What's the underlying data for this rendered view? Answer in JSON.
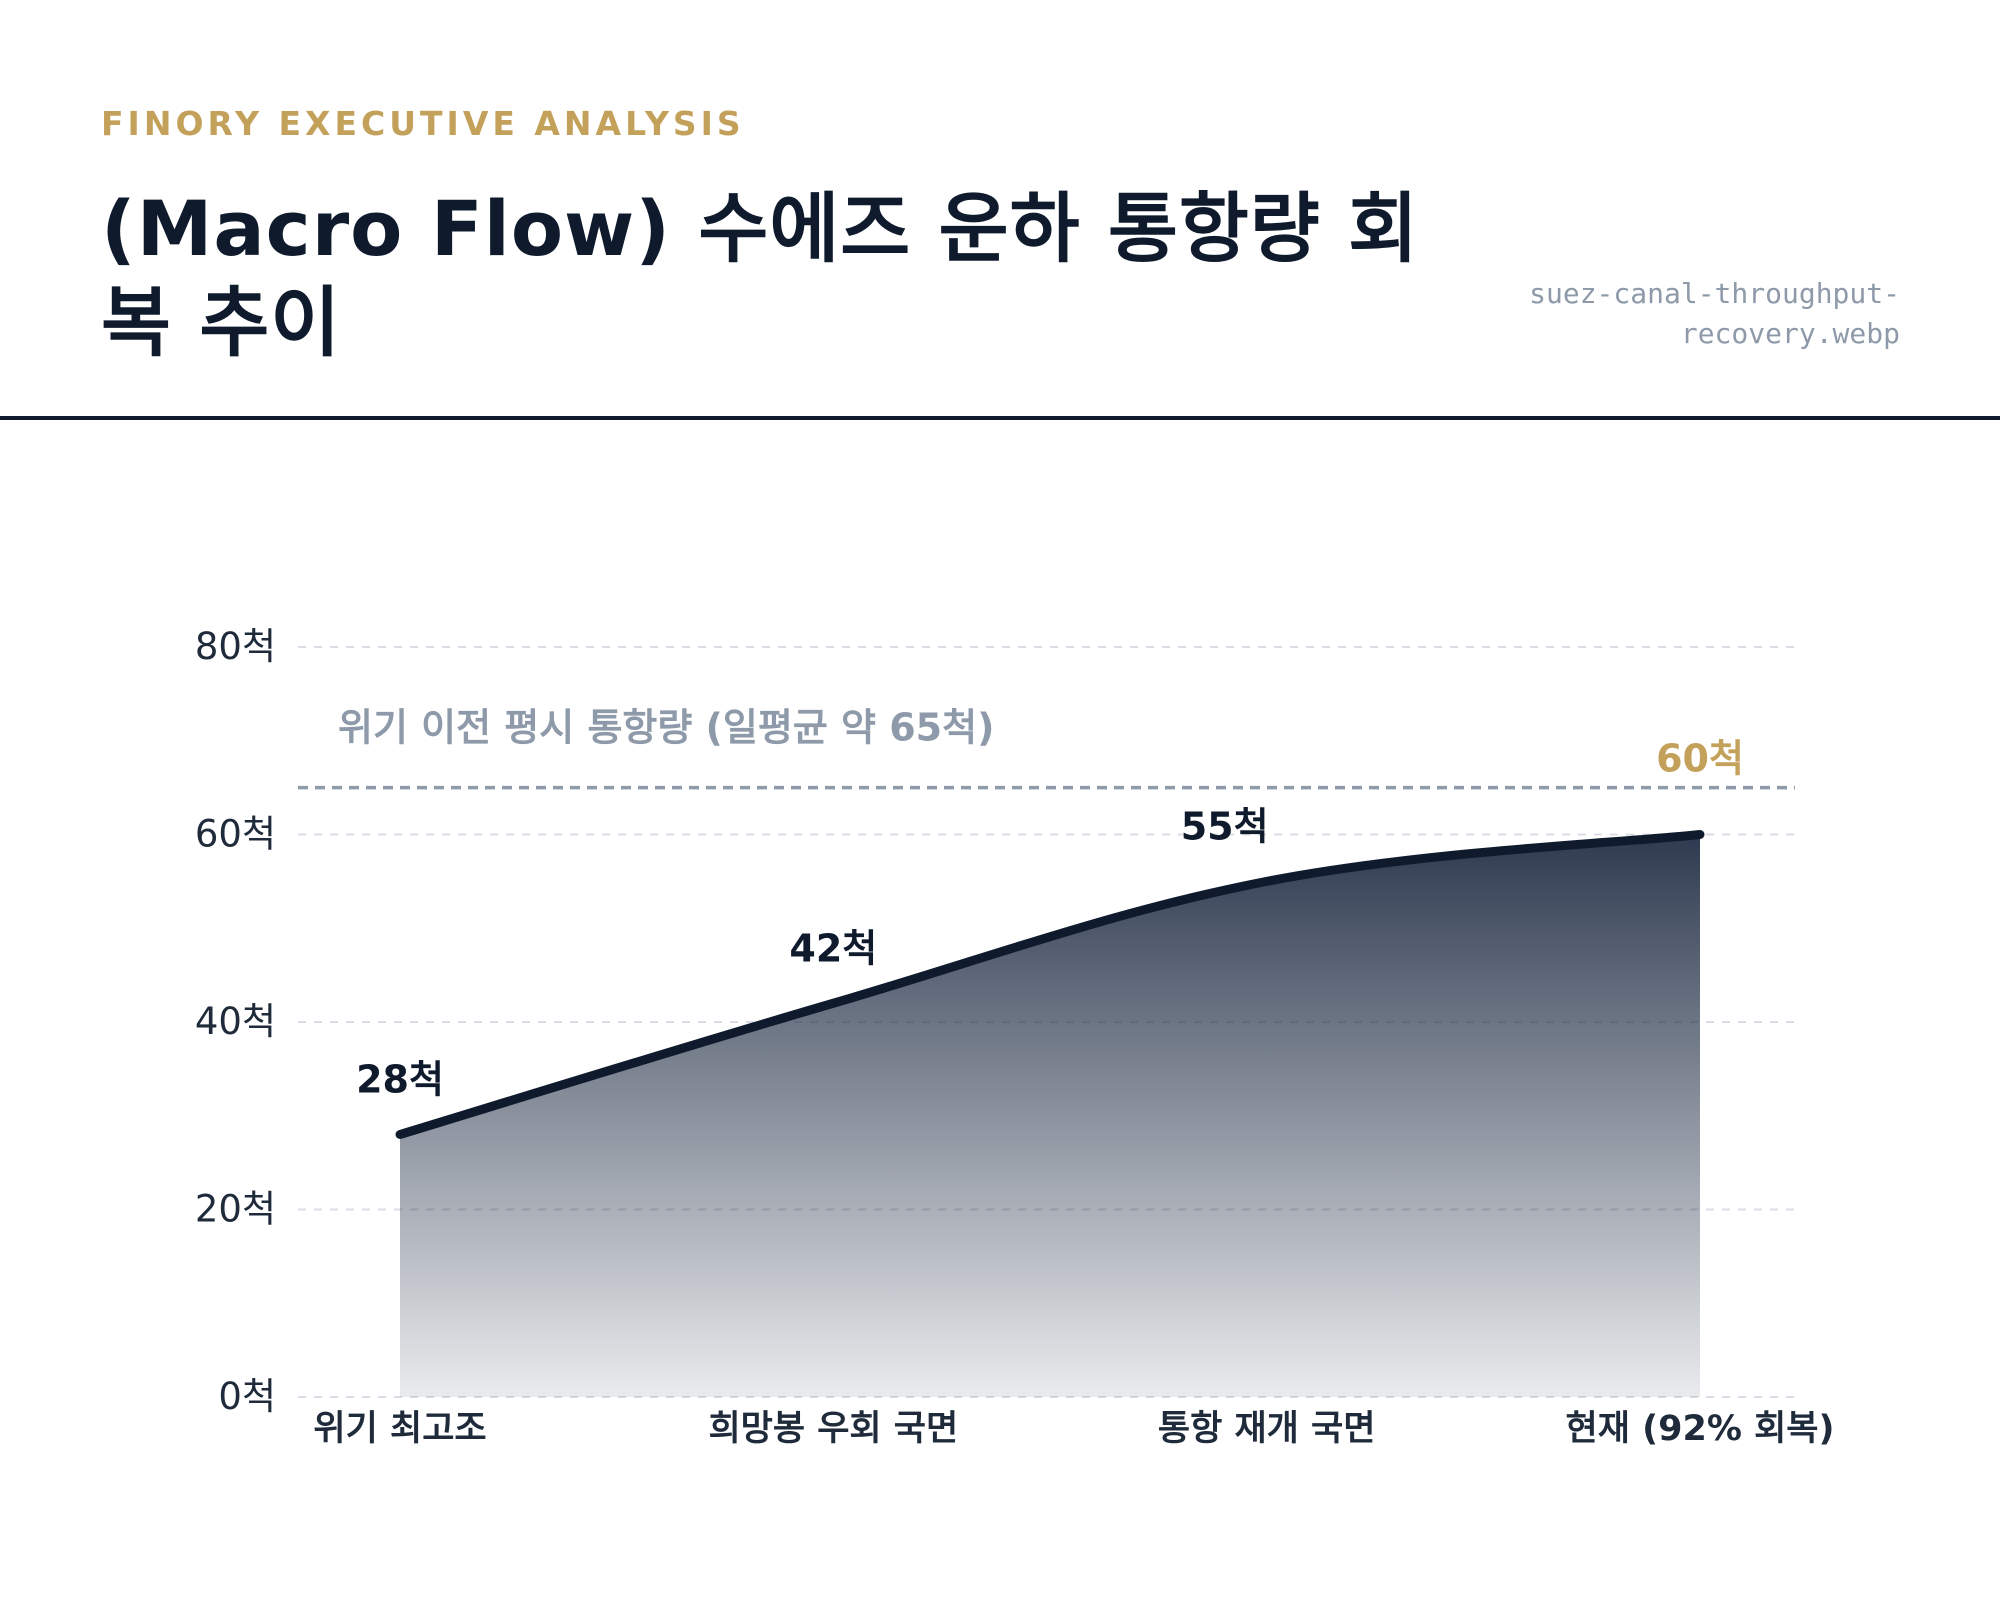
{
  "header": {
    "eyebrow": "FINORY EXECUTIVE ANALYSIS",
    "title": "(Macro Flow) 수에즈 운하 통항량 회복 추이",
    "filename": "suez-canal-throughput-recovery.webp"
  },
  "colors": {
    "navy": "#0f1b2d",
    "gold": "#c4a15a",
    "reference_gray": "#8e9aa9",
    "grid": "#d9dde3"
  },
  "chart_data": {
    "type": "area",
    "categories": [
      "위기 최고조",
      "희망봉 우회 국면",
      "통항 재개 국면",
      "현재 (92% 회복)"
    ],
    "values": [
      28,
      42,
      55,
      60
    ],
    "data_labels": [
      "28척",
      "42척",
      "55척",
      "60척"
    ],
    "ylim": [
      0,
      80
    ],
    "y_ticks": [
      0,
      20,
      40,
      60,
      80
    ],
    "y_tick_labels": [
      "0척",
      "20척",
      "40척",
      "60척",
      "80척"
    ],
    "grid": true,
    "reference_line": {
      "value": 65,
      "label": "위기 이전 평시 통항량 (일평균 약 65척)"
    }
  }
}
